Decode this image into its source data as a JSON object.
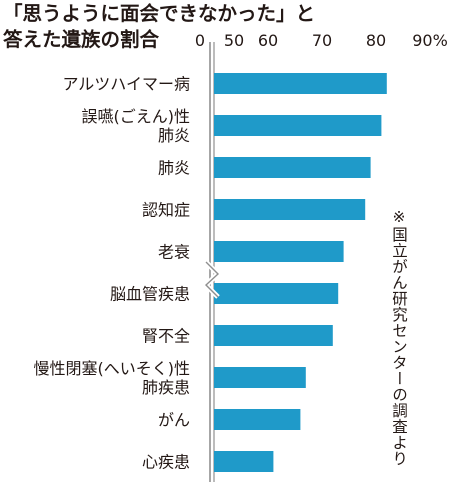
{
  "title_lines": [
    "「思うように面会できなかった」と",
    "答えた遺族の割合"
  ],
  "source_note": "※国立がん研究センターの調査より",
  "chart_data": {
    "type": "bar",
    "orientation": "horizontal",
    "title": "「思うように面会できなかった」と答えた遺族の割合",
    "categories": [
      [
        "アルツハイマー病"
      ],
      [
        "誤嚥(ごえん)性",
        "肺炎"
      ],
      [
        "肺炎"
      ],
      [
        "認知症"
      ],
      [
        "老衰"
      ],
      [
        "脳血管疾患"
      ],
      [
        "腎不全"
      ],
      [
        "慢性閉塞(へいそく)性",
        "肺疾患"
      ],
      [
        "がん"
      ],
      [
        "心疾患"
      ]
    ],
    "values": [
      82,
      81,
      79,
      78,
      74,
      73,
      72,
      67,
      66,
      61
    ],
    "ticks": [
      "0",
      "50",
      "60",
      "70",
      "80",
      "90%"
    ],
    "xlim": [
      0,
      90
    ],
    "axis_break": [
      0,
      50
    ],
    "grid": false,
    "colors": {
      "bar": "#1f9ac9",
      "axis": "#8f8f8f",
      "text": "#231815"
    }
  }
}
